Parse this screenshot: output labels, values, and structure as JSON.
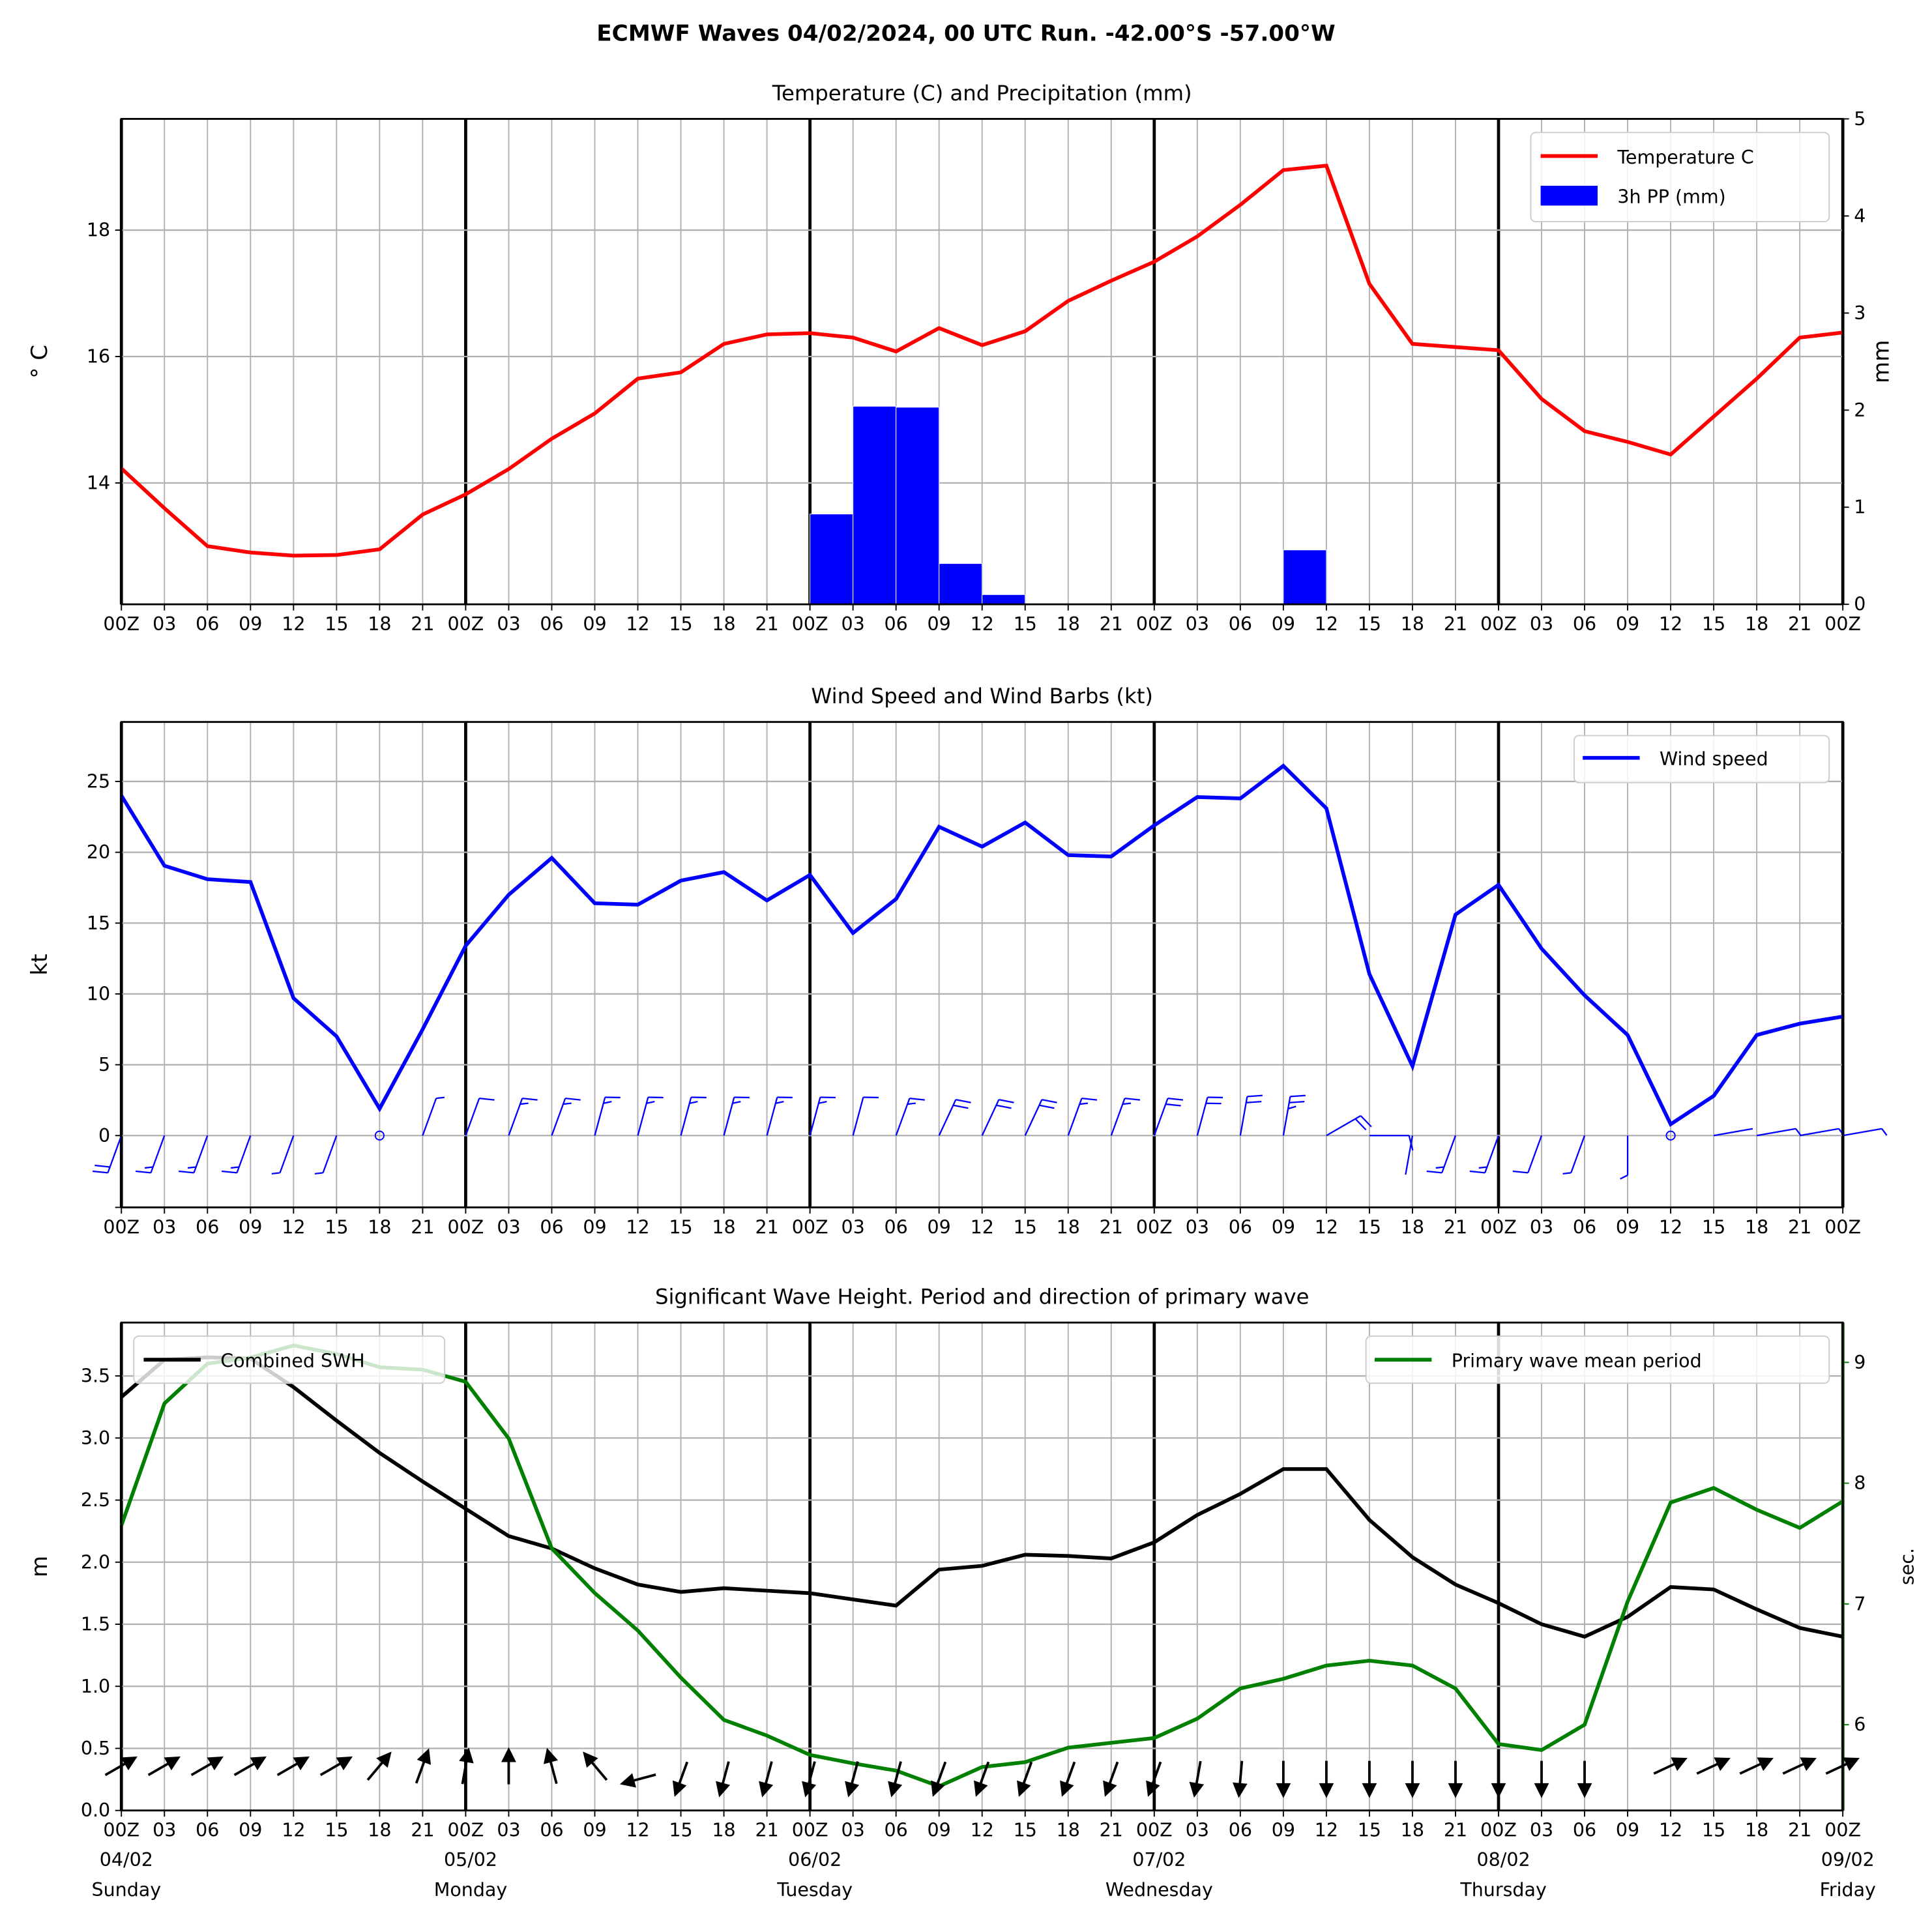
{
  "title": "ECMWF Waves 04/02/2024, 00 UTC Run. -42.00°S -57.00°W",
  "colors": {
    "temperature": "#ff0000",
    "precip": "#0000ff",
    "wind": "#0000ff",
    "swh": "#000000",
    "period": "#008000",
    "grid": "#b0b0b0"
  },
  "x_tick_labels": [
    "00Z",
    "03",
    "06",
    "09",
    "12",
    "15",
    "18",
    "21",
    "00Z",
    "03",
    "06",
    "09",
    "12",
    "15",
    "18",
    "21",
    "00Z",
    "03",
    "06",
    "09",
    "12",
    "15",
    "18",
    "21",
    "00Z",
    "03",
    "06",
    "09",
    "12",
    "15",
    "18",
    "21",
    "00Z",
    "03",
    "06",
    "09",
    "12",
    "15",
    "18",
    "21",
    "00Z"
  ],
  "day_labels": [
    {
      "date": "04/02",
      "weekday": "Sunday"
    },
    {
      "date": "05/02",
      "weekday": "Monday"
    },
    {
      "date": "06/02",
      "weekday": "Tuesday"
    },
    {
      "date": "07/02",
      "weekday": "Wednesday"
    },
    {
      "date": "08/02",
      "weekday": "Thursday"
    },
    {
      "date": "09/02",
      "weekday": "Friday"
    }
  ],
  "chart_data": [
    {
      "type": "line+bar",
      "title": "Temperature (C) and Precipitation (mm)",
      "ylabel": "° C",
      "y2label": "mm",
      "ylim": [
        12.08,
        19.76
      ],
      "y2lim": [
        0,
        5
      ],
      "yticks": [
        14,
        16,
        18
      ],
      "y2ticks": [
        0,
        1,
        2,
        3,
        4,
        5
      ],
      "grid": true,
      "legend": "top-right",
      "series": [
        {
          "name": "Temperature C",
          "values": [
            14.23,
            13.6,
            13.0,
            12.9,
            12.85,
            12.86,
            12.95,
            13.5,
            13.82,
            14.22,
            14.7,
            15.1,
            15.65,
            15.75,
            16.2,
            16.35,
            16.37,
            16.3,
            16.08,
            16.45,
            16.18,
            16.4,
            16.88,
            17.2,
            17.5,
            17.9,
            18.4,
            18.95,
            19.02,
            17.15,
            16.2,
            16.15,
            16.1,
            15.33,
            14.82,
            14.65,
            14.45,
            15.05,
            15.65,
            16.3,
            16.38
          ]
        }
      ],
      "bars": {
        "name": "3h PP (mm)",
        "values": [
          0,
          0,
          0,
          0,
          0,
          0,
          0,
          0,
          0,
          0,
          0,
          0,
          0,
          0,
          0,
          0,
          0.93,
          2.04,
          2.03,
          0.42,
          0.1,
          0,
          0,
          0,
          0,
          0,
          0,
          0.56,
          0,
          0,
          0,
          0,
          0,
          0,
          0,
          0,
          0,
          0,
          0,
          0
        ]
      }
    },
    {
      "type": "line",
      "title": "Wind Speed and Wind Barbs (kt)",
      "ylabel": "kt",
      "ylim": [
        -5.07,
        29.2
      ],
      "yticks": [
        0,
        5,
        10,
        15,
        20,
        25
      ],
      "grid": true,
      "legend": "top-right",
      "series": [
        {
          "name": "Wind speed",
          "values": [
            24.0,
            19.05,
            18.1,
            17.9,
            9.7,
            7.0,
            1.9,
            7.5,
            13.4,
            17.0,
            19.6,
            16.4,
            16.3,
            18.0,
            18.6,
            16.6,
            18.4,
            14.3,
            16.7,
            21.8,
            20.4,
            22.1,
            19.8,
            19.7,
            21.9,
            23.9,
            23.8,
            26.1,
            23.1,
            11.4,
            4.9,
            15.6,
            17.7,
            13.2,
            9.9,
            7.1,
            0.8,
            2.8,
            7.1,
            7.9,
            8.4
          ]
        }
      ],
      "wind_direction_from_deg": [
        200,
        200,
        200,
        200,
        200,
        200,
        null,
        20,
        20,
        20,
        20,
        15,
        15,
        15,
        15,
        15,
        15,
        15,
        20,
        25,
        25,
        25,
        20,
        20,
        20,
        15,
        10,
        10,
        60,
        90,
        190,
        200,
        200,
        200,
        200,
        180,
        null,
        80,
        80,
        80,
        80
      ]
    },
    {
      "type": "line",
      "title": "Significant Wave Height. Period and direction of primary wave",
      "ylabel": "m",
      "y2label": "sec.",
      "ylim": [
        0,
        3.93
      ],
      "y2lim": [
        5.29,
        9.33
      ],
      "yticks": [
        0.0,
        0.5,
        1.0,
        1.5,
        2.0,
        2.5,
        3.0,
        3.5
      ],
      "y2ticks": [
        6,
        7,
        8,
        9
      ],
      "ytick_labels": [
        "0.0",
        "0.5",
        "1.0",
        "1.5",
        "2.0",
        "2.5",
        "3.0",
        "3.5"
      ],
      "grid": true,
      "series": [
        {
          "name": "Combined SWH",
          "axis": "left",
          "legend": "top-left",
          "values": [
            3.33,
            3.63,
            3.65,
            3.64,
            3.41,
            3.14,
            2.88,
            2.65,
            2.43,
            2.21,
            2.11,
            1.95,
            1.82,
            1.76,
            1.79,
            1.77,
            1.75,
            1.7,
            1.65,
            1.94,
            1.97,
            2.06,
            2.05,
            2.03,
            2.16,
            2.38,
            2.55,
            2.75,
            2.75,
            2.34,
            2.04,
            1.82,
            1.67,
            1.5,
            1.4,
            1.56,
            1.8,
            1.78,
            1.62,
            1.47,
            1.4
          ]
        },
        {
          "name": "Primary wave mean period",
          "axis": "right",
          "legend": "top-right",
          "values": [
            7.65,
            8.66,
            8.99,
            9.04,
            9.14,
            9.07,
            8.96,
            8.94,
            8.84,
            8.37,
            7.46,
            7.09,
            6.78,
            6.39,
            6.04,
            5.91,
            5.75,
            5.68,
            5.62,
            5.49,
            5.65,
            5.69,
            5.81,
            5.85,
            5.89,
            6.05,
            6.3,
            6.38,
            6.49,
            6.53,
            6.49,
            6.3,
            5.84,
            5.79,
            6.0,
            7.02,
            7.84,
            7.96,
            7.78,
            7.63,
            7.85
          ]
        }
      ],
      "wave_direction_to_deg": [
        60,
        60,
        60,
        60,
        60,
        60,
        40,
        20,
        10,
        0,
        -15,
        -40,
        -105,
        200,
        195,
        195,
        195,
        195,
        195,
        200,
        200,
        200,
        200,
        200,
        200,
        190,
        185,
        180,
        180,
        180,
        180,
        180,
        180,
        180,
        180,
        null,
        65,
        65,
        65,
        65,
        65
      ]
    }
  ]
}
